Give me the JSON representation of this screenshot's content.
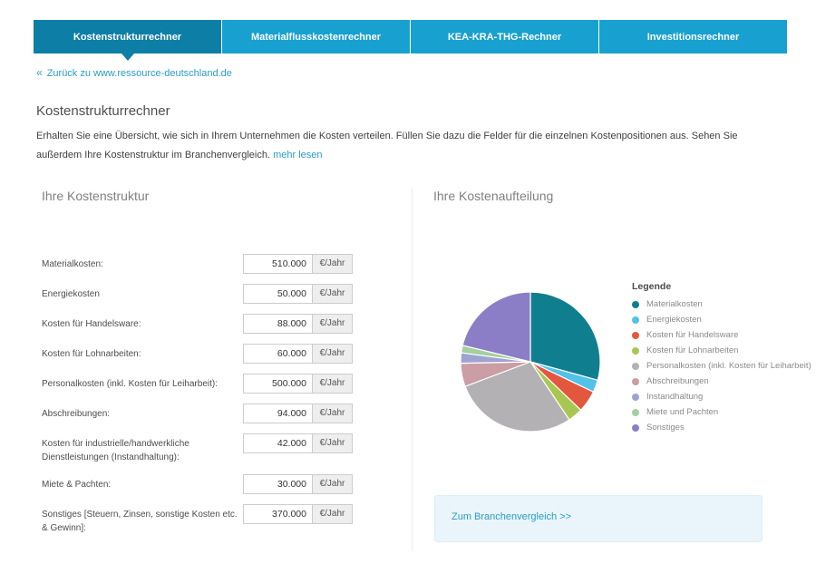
{
  "nav": {
    "tabs": [
      {
        "label": "Kostenstrukturrechner",
        "active": true
      },
      {
        "label": "Materialflusskostenrechner",
        "active": false
      },
      {
        "label": "KEA-KRA-THG-Rechner",
        "active": false
      },
      {
        "label": "Investitionsrechner",
        "active": false
      }
    ],
    "active_color": "#0d7ea6",
    "inactive_color": "#18a0d0"
  },
  "back": {
    "icon": "«",
    "label": "Zurück zu www.ressource-deutschland.de"
  },
  "page": {
    "title": "Kostenstrukturrechner",
    "intro_text": "Erhalten Sie eine Übersicht, wie sich in Ihrem Unternehmen die Kosten verteilen. Füllen Sie dazu die Felder für die einzelnen Kostenpositionen aus. Sehen Sie außerdem Ihre Kostenstruktur im Branchenvergleich.",
    "intro_link": "mehr lesen"
  },
  "form": {
    "title": "Ihre Kostenstruktur",
    "unit": "€/Jahr",
    "fields": [
      {
        "label": "Materialkosten:",
        "value": "510.000"
      },
      {
        "label": "Energiekosten",
        "value": "50.000"
      },
      {
        "label": "Kosten für Handelsware:",
        "value": "88.000"
      },
      {
        "label": "Kosten für Lohnarbeiten:",
        "value": "60.000"
      },
      {
        "label": "Personalkosten (inkl. Kosten für Leiharbeit):",
        "value": "500.000"
      },
      {
        "label": "Abschreibungen:",
        "value": "94.000"
      },
      {
        "label": "Kosten für industrielle/handwerkliche Dienstleistungen (Instandhaltung):",
        "value": "42.000"
      },
      {
        "label": "Miete & Pachten:",
        "value": "30.000"
      },
      {
        "label": "Sonstiges [Steuern, Zinsen, sonstige Kosten etc. & Gewinn]:",
        "value": "370.000"
      }
    ]
  },
  "chart": {
    "title": "Ihre Kostenaufteilung",
    "legend_title": "Legende"
  },
  "chart_data": {
    "type": "pie",
    "categories": [
      "Materialkosten",
      "Energiekosten",
      "Kosten für Handelsware",
      "Kosten für Lohnarbeiten",
      "Personalkosten (inkl. Kosten für Leiharbeit)",
      "Abschreibungen",
      "Instandhaltung",
      "Miete und Pachten",
      "Sonstiges"
    ],
    "values": [
      510000,
      50000,
      88000,
      60000,
      500000,
      94000,
      42000,
      30000,
      370000
    ],
    "unit": "€/Jahr",
    "colors": [
      "#0f7e8f",
      "#52c2e9",
      "#e4573f",
      "#a8c751",
      "#b3b1b3",
      "#cb9da4",
      "#9fa3d0",
      "#a4cf9e",
      "#8b7ec6"
    ],
    "title": "Ihre Kostenaufteilung",
    "legend_position": "right",
    "start_angle_deg": 0,
    "direction": "clockwise"
  },
  "footer": {
    "branch_link": "Zum Branchenvergleich >>"
  }
}
